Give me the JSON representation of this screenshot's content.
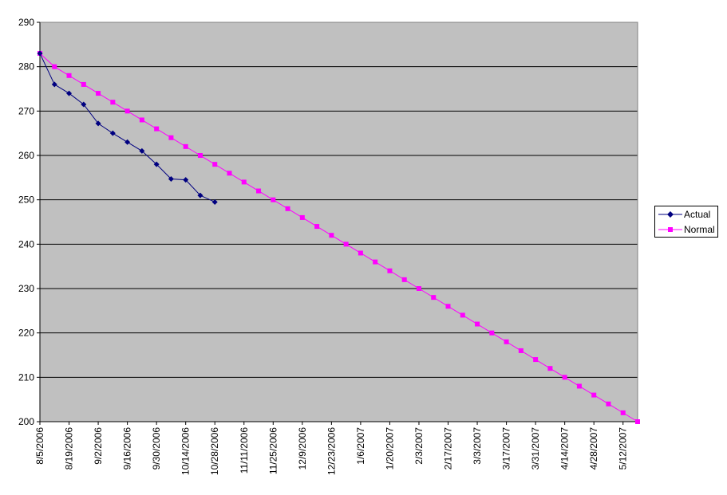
{
  "chart_data": {
    "type": "line",
    "y_ticks": [
      200,
      210,
      220,
      230,
      240,
      250,
      260,
      270,
      280,
      290
    ],
    "ylim": [
      200,
      290
    ],
    "grid": true,
    "legend_position": "right",
    "plot_background": "#C0C0C0",
    "x_ticks": [
      "8/5/2006",
      "8/19/2006",
      "9/2/2006",
      "9/16/2006",
      "9/30/2006",
      "10/14/2006",
      "10/28/2006",
      "11/11/2006",
      "11/25/2006",
      "12/9/2006",
      "12/23/2006",
      "1/6/2007",
      "1/20/2007",
      "2/3/2007",
      "2/17/2007",
      "3/3/2007",
      "3/17/2007",
      "3/31/2007",
      "4/14/2007",
      "4/28/2007",
      "5/12/2007"
    ],
    "series": [
      {
        "name": "Actual",
        "color": "#000080",
        "marker": "diamond",
        "x": [
          "8/5/2006",
          "8/12/2006",
          "8/19/2006",
          "8/26/2006",
          "9/2/2006",
          "9/9/2006",
          "9/16/2006",
          "9/23/2006",
          "9/30/2006",
          "10/7/2006",
          "10/14/2006",
          "10/21/2006",
          "10/28/2006"
        ],
        "values": [
          283,
          276,
          274,
          271.5,
          267.2,
          265,
          263,
          261,
          258,
          254.7,
          254.5,
          251,
          249.5
        ]
      },
      {
        "name": "Normal",
        "color": "#FF00FF",
        "marker": "square",
        "x": [
          "8/5/2006",
          "8/12/2006",
          "8/19/2006",
          "8/26/2006",
          "9/2/2006",
          "9/9/2006",
          "9/16/2006",
          "9/23/2006",
          "9/30/2006",
          "10/7/2006",
          "10/14/2006",
          "10/21/2006",
          "10/28/2006",
          "11/4/2006",
          "11/11/2006",
          "11/18/2006",
          "11/25/2006",
          "12/2/2006",
          "12/9/2006",
          "12/16/2006",
          "12/23/2006",
          "12/30/2006",
          "1/6/2007",
          "1/13/2007",
          "1/20/2007",
          "1/27/2007",
          "2/3/2007",
          "2/10/2007",
          "2/17/2007",
          "2/24/2007",
          "3/3/2007",
          "3/10/2007",
          "3/17/2007",
          "3/24/2007",
          "3/31/2007",
          "4/7/2007",
          "4/14/2007",
          "4/21/2007",
          "4/28/2007",
          "5/5/2007",
          "5/12/2007",
          "5/19/2007"
        ],
        "values": [
          283,
          280,
          278,
          276,
          274,
          272,
          270,
          268,
          266,
          264,
          262,
          260,
          258,
          256,
          254,
          252,
          250,
          248,
          246,
          244,
          242,
          240,
          238,
          236,
          234,
          232,
          230,
          228,
          226,
          224,
          222,
          220,
          218,
          216,
          214,
          212,
          210,
          208,
          206,
          204,
          202,
          200
        ]
      }
    ]
  }
}
